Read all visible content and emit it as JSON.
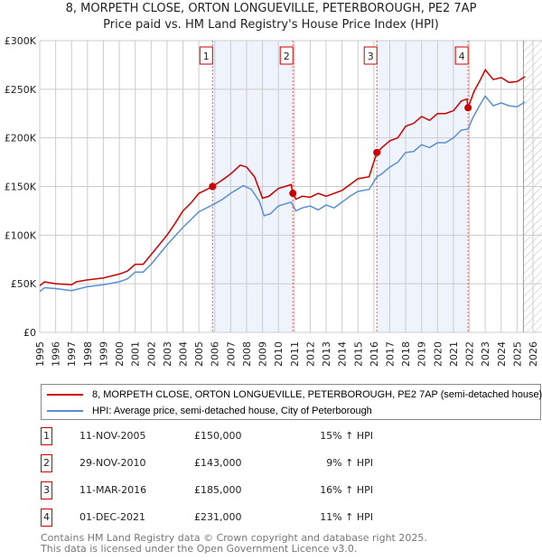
{
  "chart_data": {
    "type": "line",
    "title": "8, MORPETH CLOSE, ORTON LONGUEVILLE, PETERBOROUGH, PE2 7AP",
    "subtitle": "Price paid vs. HM Land Registry's House Price Index (HPI)",
    "xlim": [
      1995,
      2026
    ],
    "ylim": [
      0,
      300000
    ],
    "x_ticks": [
      "1995",
      "1996",
      "1997",
      "1998",
      "1999",
      "2000",
      "2001",
      "2002",
      "2003",
      "2004",
      "2005",
      "2006",
      "2007",
      "2008",
      "2009",
      "2010",
      "2011",
      "2012",
      "2013",
      "2014",
      "2015",
      "2016",
      "2017",
      "2018",
      "2019",
      "2020",
      "2021",
      "2022",
      "2023",
      "2024",
      "2025",
      "2026"
    ],
    "y_ticks": [
      {
        "v": 0,
        "label": "£0"
      },
      {
        "v": 50000,
        "label": "£50K"
      },
      {
        "v": 100000,
        "label": "£100K"
      },
      {
        "v": 150000,
        "label": "£150K"
      },
      {
        "v": 200000,
        "label": "£200K"
      },
      {
        "v": 250000,
        "label": "£250K"
      },
      {
        "v": 300000,
        "label": "£300K"
      }
    ],
    "grid": true,
    "forecast_from": 2025.4,
    "shaded_ranges": [
      [
        2005.86,
        2010.91
      ],
      [
        2016.19,
        2021.92
      ]
    ],
    "series": [
      {
        "name": "8, MORPETH CLOSE, ORTON LONGUEVILLE, PETERBOROUGH, PE2 7AP (semi-detached house)",
        "color": "#cc0000",
        "x": [
          1995,
          1995.3,
          1996,
          1997,
          1997.3,
          1998,
          1999,
          2000,
          2000.5,
          2001,
          2001.5,
          2002,
          2003,
          2003.5,
          2004,
          2004.5,
          2005,
          2005.5,
          2005.86,
          2006.5,
          2007,
          2007.6,
          2008,
          2008.5,
          2009,
          2009.4,
          2010,
          2010.8,
          2010.91,
          2011.1,
          2011.5,
          2012,
          2012.5,
          2013,
          2013.5,
          2014,
          2014.5,
          2015,
          2015.7,
          2016.19,
          2016.5,
          2017,
          2017.5,
          2018,
          2018.5,
          2019,
          2019.5,
          2020,
          2020.5,
          2021,
          2021.5,
          2021.85,
          2021.92,
          2022.3,
          2022.7,
          2023,
          2023.5,
          2024,
          2024.5,
          2025,
          2025.5
        ],
        "y": [
          48000,
          52000,
          50000,
          49000,
          52000,
          54000,
          56000,
          60000,
          63000,
          70000,
          70000,
          80000,
          100000,
          112000,
          125000,
          133000,
          143000,
          147000,
          150000,
          157000,
          163000,
          172000,
          170000,
          160000,
          138000,
          140000,
          148000,
          152000,
          143000,
          137000,
          140000,
          139000,
          143000,
          140000,
          143000,
          146000,
          152000,
          158000,
          160000,
          185000,
          190000,
          197000,
          200000,
          212000,
          215000,
          222000,
          218000,
          225000,
          225000,
          228000,
          238000,
          240000,
          231000,
          248000,
          260000,
          270000,
          260000,
          262000,
          257000,
          258000,
          263000
        ]
      },
      {
        "name": "HPI: Average price, semi-detached house, City of Peterborough",
        "color": "#5b8fd4",
        "x": [
          1995,
          1995.3,
          1996,
          1997,
          1998,
          1999,
          2000,
          2000.5,
          2001,
          2001.5,
          2002,
          2003,
          2004,
          2005,
          2005.86,
          2006.5,
          2007,
          2007.8,
          2008.3,
          2008.8,
          2009.1,
          2009.5,
          2010,
          2010.8,
          2011.1,
          2011.5,
          2012,
          2012.5,
          2013,
          2013.5,
          2014,
          2014.5,
          2015,
          2015.7,
          2016.19,
          2016.5,
          2017,
          2017.5,
          2018,
          2018.5,
          2019,
          2019.5,
          2020,
          2020.5,
          2021,
          2021.5,
          2021.92,
          2022.2,
          2022.6,
          2023,
          2023.5,
          2024,
          2024.5,
          2025,
          2025.5
        ],
        "y": [
          42000,
          46000,
          45000,
          43000,
          47000,
          49000,
          52000,
          55000,
          62000,
          62000,
          70000,
          90000,
          108000,
          124000,
          131000,
          137000,
          143000,
          151000,
          147000,
          135000,
          120000,
          122000,
          130000,
          134000,
          125000,
          128000,
          130000,
          126000,
          131000,
          128000,
          134000,
          140000,
          145000,
          147000,
          160000,
          163000,
          170000,
          175000,
          185000,
          186000,
          193000,
          190000,
          195000,
          195000,
          200000,
          208000,
          209000,
          220000,
          232000,
          243000,
          233000,
          236000,
          233000,
          232000,
          237000
        ]
      }
    ],
    "sales": [
      {
        "n": "1",
        "x": 2005.86,
        "y": 150000
      },
      {
        "n": "2",
        "x": 2010.91,
        "y": 143000
      },
      {
        "n": "3",
        "x": 2016.19,
        "y": 185000
      },
      {
        "n": "4",
        "x": 2021.92,
        "y": 231000
      }
    ]
  },
  "legend": {
    "property": "8, MORPETH CLOSE, ORTON LONGUEVILLE, PETERBOROUGH, PE2 7AP (semi-detached house)",
    "hpi": "HPI: Average price, semi-detached house, City of Peterborough"
  },
  "table": [
    {
      "n": "1",
      "date": "11-NOV-2005",
      "price": "£150,000",
      "hpi": "15% ↑ HPI"
    },
    {
      "n": "2",
      "date": "29-NOV-2010",
      "price": "£143,000",
      "hpi": "9% ↑ HPI"
    },
    {
      "n": "3",
      "date": "11-MAR-2016",
      "price": "£185,000",
      "hpi": "16% ↑ HPI"
    },
    {
      "n": "4",
      "date": "01-DEC-2021",
      "price": "£231,000",
      "hpi": "11% ↑ HPI"
    }
  ],
  "footer": {
    "line1": "Contains HM Land Registry data © Crown copyright and database right 2025.",
    "line2": "This data is licensed under the Open Government Licence v3.0."
  }
}
